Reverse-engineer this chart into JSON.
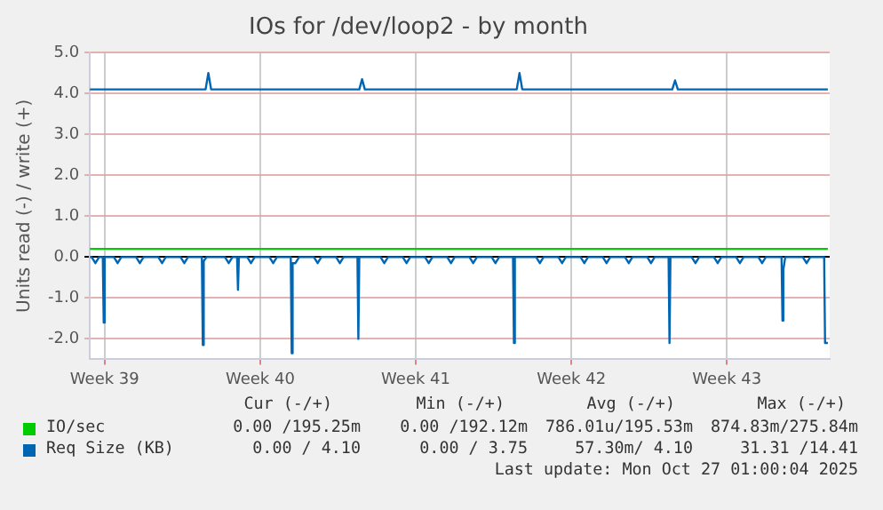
{
  "chart_data": {
    "type": "line",
    "title": "IOs for /dev/loop2 - by month",
    "ylabel": "Units read (-) / write (+)",
    "xlim": [
      "2025-09-23T20:00",
      "2025-10-27T03:00"
    ],
    "xticks": [
      {
        "value": "2025-09-24T12:00",
        "label": "Week 39"
      },
      {
        "value": "2025-10-01T12:00",
        "label": "Week 40"
      },
      {
        "value": "2025-10-08T12:00",
        "label": "Week 41"
      },
      {
        "value": "2025-10-15T12:00",
        "label": "Week 42"
      },
      {
        "value": "2025-10-22T12:00",
        "label": "Week 43"
      }
    ],
    "ylim": [
      -2.5,
      5.0
    ],
    "yticks": [
      {
        "value": -2,
        "label": "-2.0"
      },
      {
        "value": -1,
        "label": "-1.0"
      },
      {
        "value": 0,
        "label": "0.0"
      },
      {
        "value": 1,
        "label": "1.0"
      },
      {
        "value": 2,
        "label": "2.0"
      },
      {
        "value": 3,
        "label": "3.0"
      },
      {
        "value": 4,
        "label": "4.0"
      },
      {
        "value": 5,
        "label": "5.0"
      }
    ],
    "grid": true,
    "legend": "bottom",
    "marker": "none",
    "line_style": "solid",
    "series": [
      {
        "name": "IO/sec",
        "color": "#00cc00",
        "x": [
          "2025-09-23T20:00",
          "2025-10-27T01:00"
        ],
        "values": [
          0.2,
          0.2
        ]
      },
      {
        "name": "Req Size (KB)",
        "color": "#0066b3",
        "x": [
          "2025-09-23T20:00",
          "2025-09-29T01:00",
          "2025-09-29T04:00",
          "2025-09-29T07:00",
          "2025-10-05T23:00",
          "2025-10-06T02:00",
          "2025-10-06T05:00",
          "2025-10-13T01:00",
          "2025-10-13T04:00",
          "2025-10-13T07:00",
          "2025-10-20T01:00",
          "2025-10-20T04:00",
          "2025-10-20T07:00",
          "2025-10-27T01:00"
        ],
        "values": [
          4.1,
          4.1,
          4.5,
          4.1,
          4.1,
          4.35,
          4.1,
          4.1,
          4.5,
          4.1,
          4.1,
          4.32,
          4.1,
          4.1
        ]
      },
      {
        "color": "#0066b3",
        "x": [
          "2025-09-23T20:00",
          "2025-09-23T22:00",
          "2025-09-24T02:00",
          "2025-09-24T06:00",
          "2025-09-24T10:00",
          "2025-09-24T11:00",
          "2025-09-24T12:00",
          "2025-09-24T22:00",
          "2025-09-25T02:00",
          "2025-09-25T06:00",
          "2025-09-25T22:00",
          "2025-09-26T02:00",
          "2025-09-26T06:00",
          "2025-09-26T22:00",
          "2025-09-27T02:00",
          "2025-09-27T06:00",
          "2025-09-27T22:00",
          "2025-09-28T02:00",
          "2025-09-28T06:00",
          "2025-09-28T21:00",
          "2025-09-28T22:00",
          "2025-09-28T23:00",
          "2025-09-29T02:00",
          "2025-09-29T22:00",
          "2025-09-30T02:00",
          "2025-09-30T06:00",
          "2025-09-30T11:00",
          "2025-09-30T12:00",
          "2025-09-30T13:00",
          "2025-09-30T22:00",
          "2025-10-01T02:00",
          "2025-10-01T06:00",
          "2025-10-01T22:00",
          "2025-10-02T02:00",
          "2025-10-02T06:00",
          "2025-10-02T21:00",
          "2025-10-02T22:00",
          "2025-10-02T23:00",
          "2025-10-03T02:00",
          "2025-10-03T06:00",
          "2025-10-03T22:00",
          "2025-10-04T02:00",
          "2025-10-04T06:00",
          "2025-10-04T22:00",
          "2025-10-05T02:00",
          "2025-10-05T06:00",
          "2025-10-05T21:00",
          "2025-10-05T22:00",
          "2025-10-05T23:00",
          "2025-10-06T22:00",
          "2025-10-07T02:00",
          "2025-10-07T06:00",
          "2025-10-07T22:00",
          "2025-10-08T02:00",
          "2025-10-08T06:00",
          "2025-10-08T22:00",
          "2025-10-09T02:00",
          "2025-10-09T06:00",
          "2025-10-09T22:00",
          "2025-10-10T02:00",
          "2025-10-10T06:00",
          "2025-10-10T22:00",
          "2025-10-11T02:00",
          "2025-10-11T06:00",
          "2025-10-11T22:00",
          "2025-10-12T02:00",
          "2025-10-12T06:00",
          "2025-10-12T21:00",
          "2025-10-12T22:00",
          "2025-10-12T23:00",
          "2025-10-13T22:00",
          "2025-10-14T02:00",
          "2025-10-14T06:00",
          "2025-10-14T22:00",
          "2025-10-15T02:00",
          "2025-10-15T06:00",
          "2025-10-15T22:00",
          "2025-10-16T02:00",
          "2025-10-16T06:00",
          "2025-10-16T22:00",
          "2025-10-17T02:00",
          "2025-10-17T06:00",
          "2025-10-17T22:00",
          "2025-10-18T02:00",
          "2025-10-18T06:00",
          "2025-10-18T22:00",
          "2025-10-19T02:00",
          "2025-10-19T06:00",
          "2025-10-19T21:00",
          "2025-10-19T22:00",
          "2025-10-19T23:00",
          "2025-10-20T22:00",
          "2025-10-21T02:00",
          "2025-10-21T06:00",
          "2025-10-21T22:00",
          "2025-10-22T02:00",
          "2025-10-22T06:00",
          "2025-10-22T22:00",
          "2025-10-23T02:00",
          "2025-10-23T06:00",
          "2025-10-23T22:00",
          "2025-10-24T02:00",
          "2025-10-24T06:00",
          "2025-10-24T23:00",
          "2025-10-25T00:00",
          "2025-10-25T01:00",
          "2025-10-25T03:00",
          "2025-10-25T22:00",
          "2025-10-26T02:00",
          "2025-10-26T06:00",
          "2025-10-26T21:00",
          "2025-10-26T22:00",
          "2025-10-27T01:00"
        ],
        "values": [
          0,
          0,
          -0.15,
          0,
          0,
          -1.6,
          0,
          0,
          -0.15,
          0,
          0,
          -0.15,
          0,
          0,
          -0.15,
          0,
          0,
          -0.15,
          0,
          0,
          -2.15,
          -0.1,
          0,
          0,
          -0.15,
          0,
          0,
          -0.8,
          0,
          0,
          -0.15,
          0,
          0,
          -0.15,
          0,
          0,
          -2.35,
          -0.15,
          -0.15,
          0,
          0,
          -0.15,
          0,
          0,
          -0.15,
          0,
          0,
          -2.0,
          0,
          0,
          -0.15,
          0,
          0,
          -0.15,
          0,
          0,
          -0.15,
          0,
          0,
          -0.15,
          0,
          0,
          -0.15,
          0,
          0,
          -0.15,
          0,
          0,
          -2.1,
          0,
          0,
          -0.15,
          0,
          0,
          -0.15,
          0,
          0,
          -0.15,
          0,
          0,
          -0.15,
          0,
          0,
          -0.15,
          0,
          0,
          -0.15,
          0,
          0,
          -2.1,
          0,
          0,
          -0.15,
          0,
          0,
          -0.15,
          0,
          0,
          -0.15,
          0,
          0,
          -0.15,
          0,
          0,
          -1.55,
          -0.3,
          0,
          0,
          -0.15,
          0,
          0,
          -2.1,
          -2.1
        ]
      }
    ],
    "annotations": [
      "Cur (-/+)",
      "Min (-/+)",
      "Avg (-/+)",
      "Max (-/+)",
      "0.00 /195.25m",
      "0.00 /192.12m",
      "786.01u/195.53m",
      "874.83m/275.84m",
      "0.00 / 4.10",
      "0.00 / 3.75",
      "57.30m/ 4.10",
      "31.31 /14.41",
      "Last update: Mon Oct 27 01:00:04 2025"
    ]
  }
}
